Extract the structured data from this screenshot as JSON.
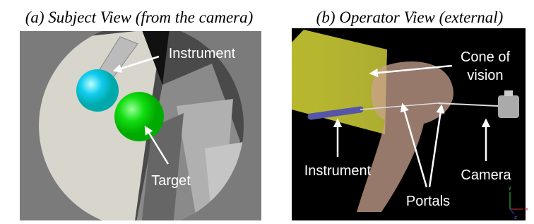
{
  "panels": [
    {
      "title": "(a) Subject View (from the camera)",
      "labels": {
        "instrument": "Instrument",
        "target": "Target"
      }
    },
    {
      "title": "(b) Operator View (external)",
      "labels": {
        "cone": [
          "Cone of",
          "vision"
        ],
        "instrument": "Instrument",
        "portals": "Portals",
        "camera": "Camera"
      },
      "axes": [
        "y",
        "x",
        "z"
      ]
    }
  ]
}
